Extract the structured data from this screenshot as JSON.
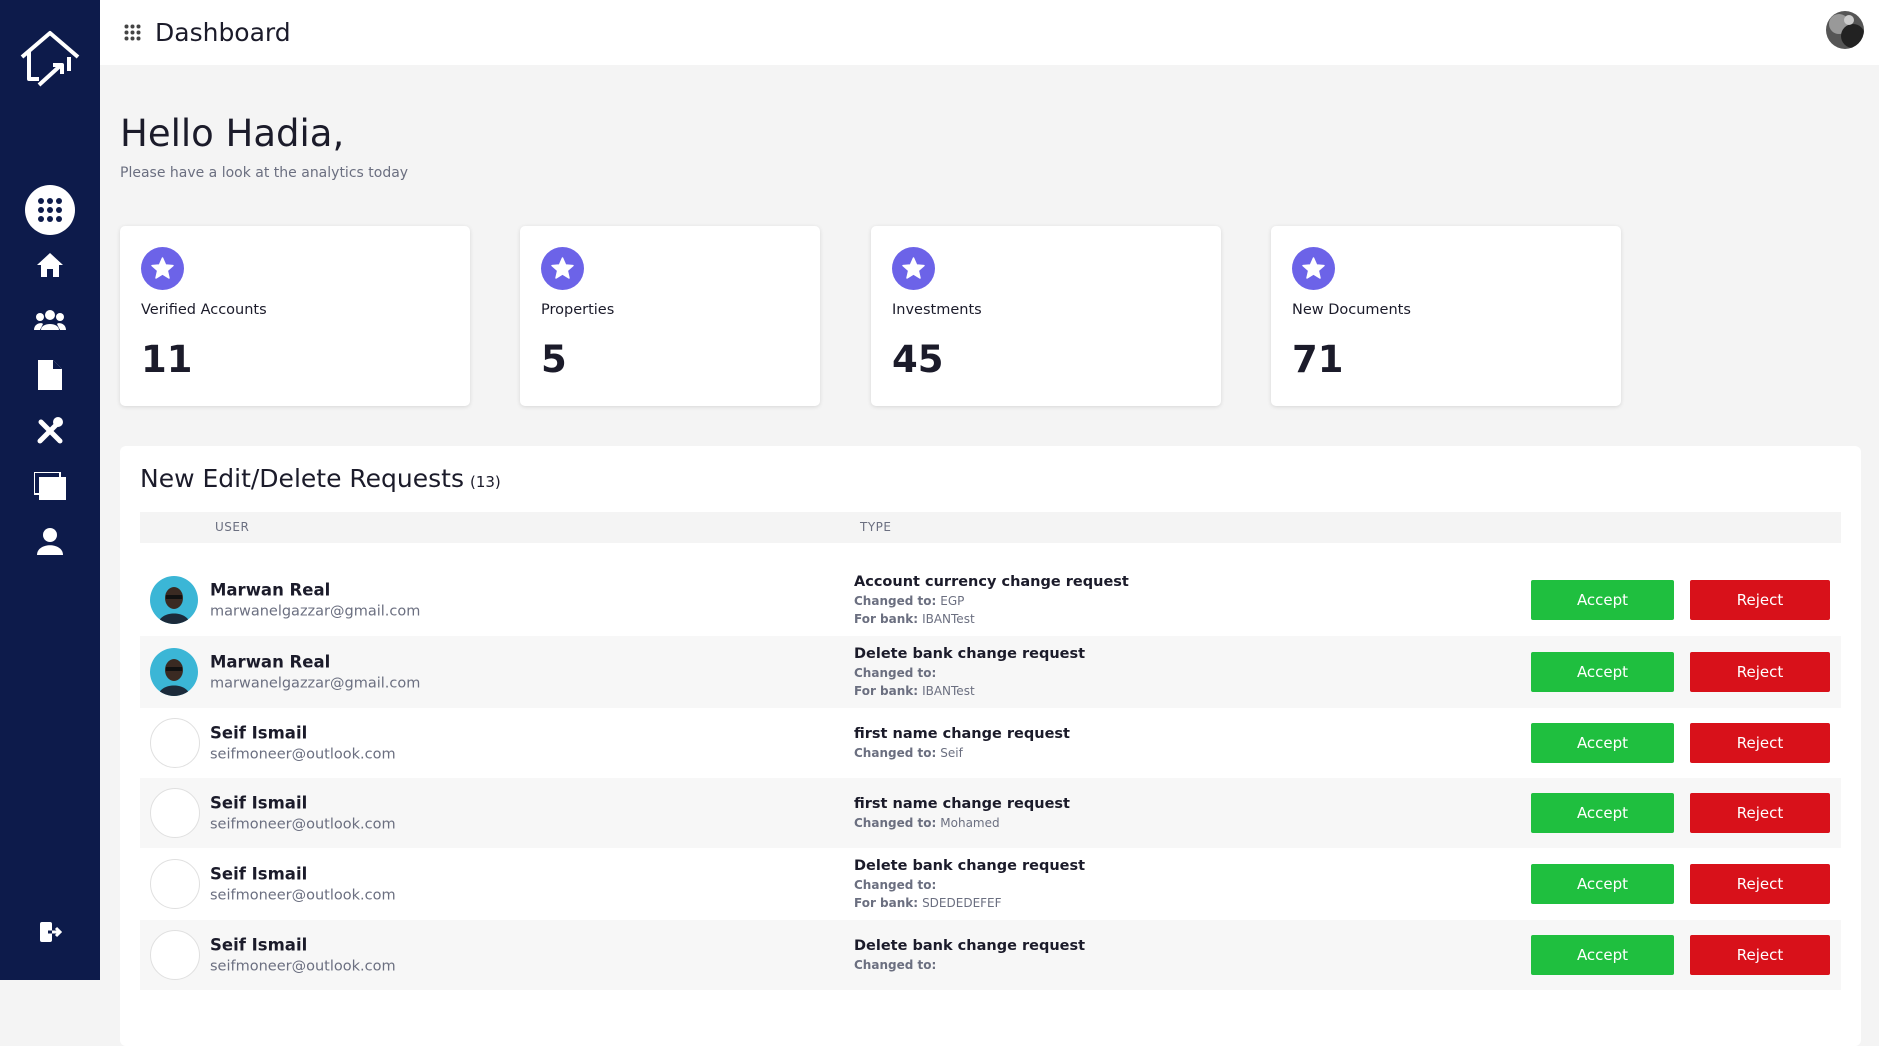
{
  "header": {
    "title": "Dashboard"
  },
  "greeting": {
    "title": "Hello Hadia,",
    "subtitle": "Please have a look at the analytics today"
  },
  "stats": [
    {
      "label": "Verified Accounts",
      "value": 11
    },
    {
      "label": "Properties",
      "value": 5
    },
    {
      "label": "Investments",
      "value": 45
    },
    {
      "label": "New Documents",
      "value": 71
    }
  ],
  "requests": {
    "title": "New Edit/Delete Requests",
    "count": "(13)",
    "columns": [
      "USER",
      "TYPE"
    ],
    "actions": {
      "accept": "Accept",
      "reject": "Reject"
    },
    "rows": [
      {
        "name": "Marwan Real",
        "email": "marwanelgazzar@gmail.com",
        "type": "Account currency change request",
        "details": [
          {
            "label": "Changed to:",
            "value": "EGP"
          },
          {
            "label": "For bank:",
            "value": "IBANTest"
          }
        ]
      },
      {
        "name": "Marwan Real",
        "email": "marwanelgazzar@gmail.com",
        "type": "Delete bank change request",
        "details": [
          {
            "label": "Changed to:"
          },
          {
            "label": "For bank:",
            "value": "IBANTest"
          }
        ]
      },
      {
        "name": "Seif Ismail",
        "email": "seifmoneer@outlook.com",
        "type": "first name change request",
        "details": [
          {
            "label": "Changed to:",
            "value": "Seif"
          }
        ]
      },
      {
        "name": "Seif Ismail",
        "email": "seifmoneer@outlook.com",
        "type": "first name change request",
        "details": [
          {
            "label": "Changed to:",
            "value": "Mohamed"
          }
        ]
      },
      {
        "name": "Seif Ismail",
        "email": "seifmoneer@outlook.com",
        "type": "Delete bank change request",
        "details": [
          {
            "label": "Changed to:"
          },
          {
            "label": "For bank:",
            "value": "SDEDEDEFEF"
          }
        ]
      },
      {
        "name": "Seif Ismail",
        "email": "seifmoneer@outlook.com",
        "type": "Delete bank change request",
        "details": [
          {
            "label": "Changed to:"
          }
        ]
      }
    ]
  }
}
